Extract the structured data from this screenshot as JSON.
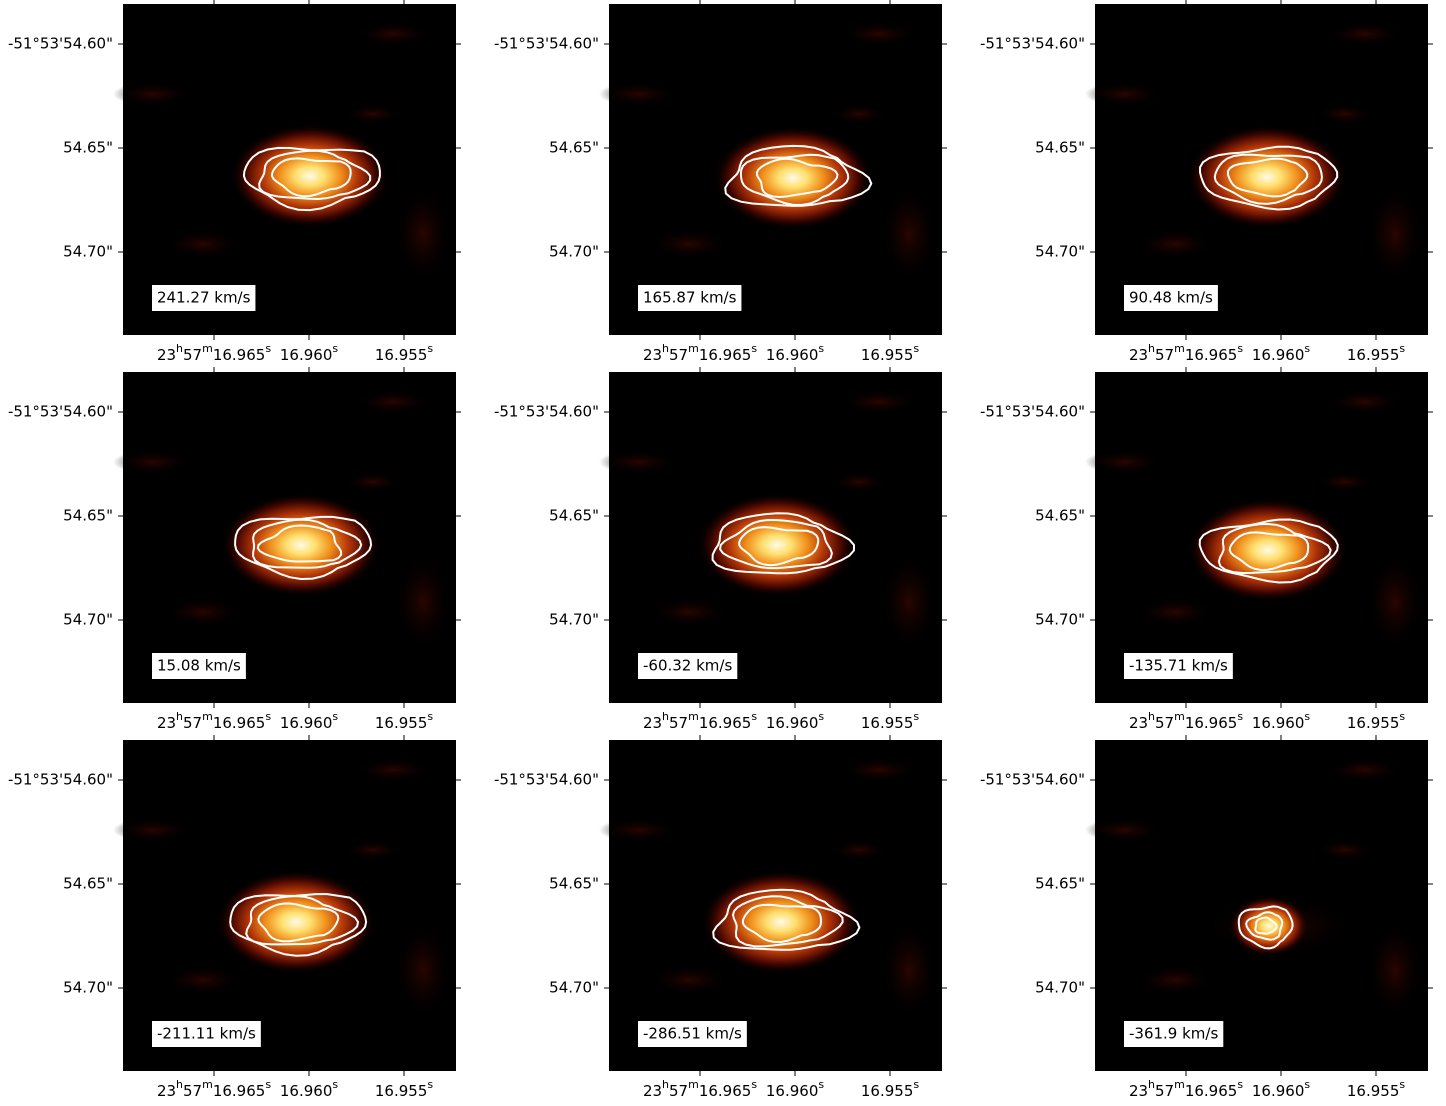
{
  "panels": [
    {
      "velocity_label": "241.27 km/s"
    },
    {
      "velocity_label": "165.87 km/s"
    },
    {
      "velocity_label": "90.48 km/s"
    },
    {
      "velocity_label": "15.08 km/s"
    },
    {
      "velocity_label": "-60.32 km/s"
    },
    {
      "velocity_label": "-135.71 km/s"
    },
    {
      "velocity_label": "-211.11 km/s"
    },
    {
      "velocity_label": "-286.51 km/s"
    },
    {
      "velocity_label": "-361.9 km/s"
    }
  ],
  "y_tick_labels": [
    "-51°53'54.60\"",
    "54.65\"",
    "54.70\""
  ],
  "x_tick_labels": [
    [
      "23",
      "h",
      "57",
      "m",
      "16.965",
      "s"
    ],
    [
      "16.960",
      "s"
    ],
    [
      "16.955",
      "s"
    ]
  ]
}
